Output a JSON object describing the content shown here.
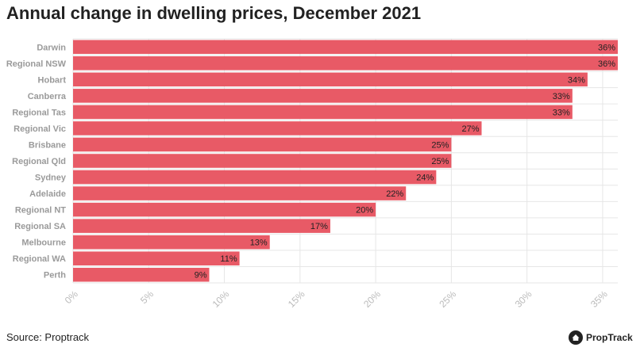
{
  "title": "Annual change in dwelling prices, December 2021",
  "source": "Source: Proptrack",
  "brand": "PropTrack",
  "colors": {
    "bar": "#e85a66",
    "grid": "#e6e6e6",
    "label": "#9a9a9a",
    "text": "#222222"
  },
  "chart_data": {
    "type": "bar",
    "orientation": "horizontal",
    "categories": [
      "Darwin",
      "Regional NSW",
      "Hobart",
      "Canberra",
      "Regional Tas",
      "Regional Vic",
      "Brisbane",
      "Regional Qld",
      "Sydney",
      "Adelaide",
      "Regional NT",
      "Regional SA",
      "Melbourne",
      "Regional WA",
      "Perth"
    ],
    "values": [
      36,
      36,
      34,
      33,
      33,
      27,
      25,
      25,
      24,
      22,
      20,
      17,
      13,
      11,
      9
    ],
    "value_labels": [
      "36%",
      "36%",
      "34%",
      "33%",
      "33%",
      "27%",
      "25%",
      "25%",
      "24%",
      "22%",
      "20%",
      "17%",
      "13%",
      "11%",
      "9%"
    ],
    "x_ticks": [
      0,
      5,
      10,
      15,
      20,
      25,
      30,
      35
    ],
    "x_tick_labels": [
      "0%",
      "5%",
      "10%",
      "15%",
      "20%",
      "25%",
      "30%",
      "35%"
    ],
    "xlim": [
      0,
      36
    ],
    "grid": true,
    "legend": "none",
    "title": "Annual change in dwelling prices, December 2021"
  }
}
